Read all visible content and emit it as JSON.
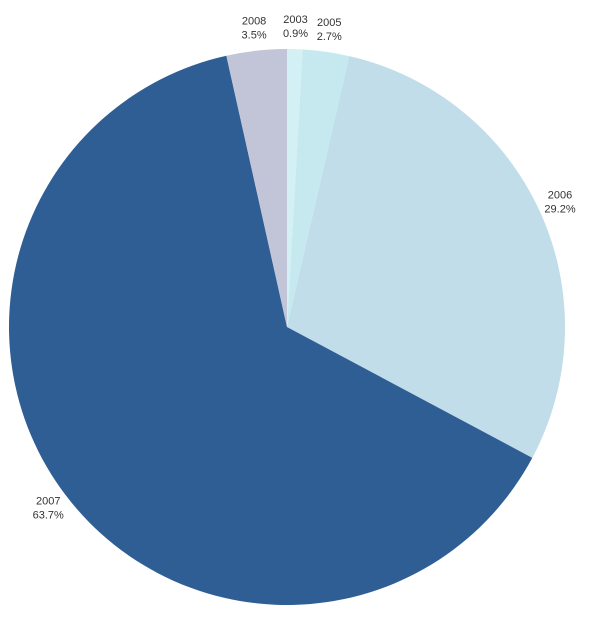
{
  "chart_data": {
    "type": "pie",
    "categories": [
      "2003",
      "2005",
      "2006",
      "2007",
      "2008"
    ],
    "values": [
      0.9,
      2.7,
      29.2,
      63.7,
      3.5
    ],
    "value_labels": [
      "0.9%",
      "2.7%",
      "29.2%",
      "63.7%",
      "3.5%"
    ],
    "colors": [
      "#d3f0f5",
      "#c6e9f0",
      "#c0dde9",
      "#2f5e95",
      "#c1c5d7"
    ]
  }
}
